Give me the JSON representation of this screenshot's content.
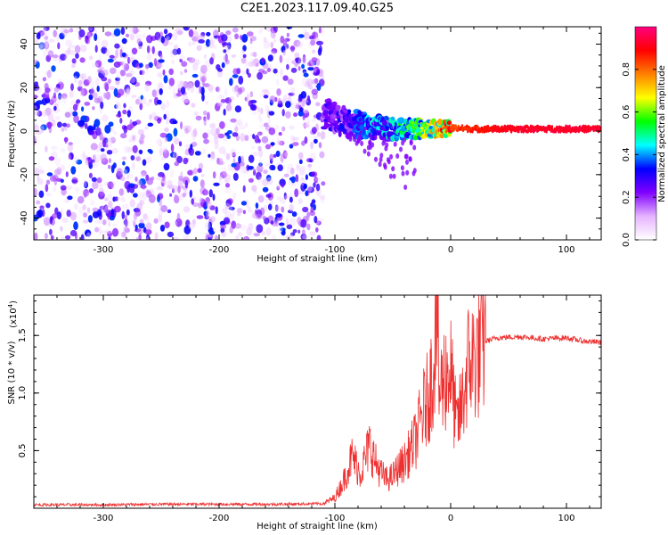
{
  "figure": {
    "title": "C2E1.2023.117.09.40.G25"
  },
  "chart_data": [
    {
      "type": "heatmap",
      "xlabel": "Height of straight line (km)",
      "ylabel": "Frequency (Hz)",
      "xlim": [
        -360,
        130
      ],
      "ylim": [
        -50,
        48
      ],
      "x_ticks": [
        -300,
        -200,
        -100,
        0,
        100
      ],
      "x_tick_labels": [
        "-300",
        "-200",
        "-100",
        "0",
        "100"
      ],
      "y_ticks": [
        -40,
        -20,
        0,
        20,
        40
      ],
      "y_tick_labels": [
        "-40",
        "-20",
        "0",
        "20",
        "40"
      ],
      "noise_region": {
        "x_range": [
          -360,
          -110
        ],
        "y_range": [
          -50,
          48
        ],
        "typical_amplitude": 0.2
      },
      "signal_trace": {
        "x": [
          -110,
          -90,
          -70,
          -50,
          -30,
          -10,
          0,
          20,
          60,
          100,
          130
        ],
        "y": [
          8,
          4,
          2,
          1,
          1,
          1,
          1.5,
          1,
          1,
          1,
          1
        ],
        "amplitude": [
          0.25,
          0.3,
          0.4,
          0.45,
          0.55,
          0.75,
          0.85,
          0.9,
          0.95,
          0.95,
          0.95
        ]
      },
      "colorbar": {
        "label": "Normalized spectral amplitude",
        "ticks": [
          0.0,
          0.2,
          0.4,
          0.6,
          0.8
        ],
        "tick_labels": [
          "0.0",
          "0.2",
          "0.4",
          "0.6",
          "0.8"
        ],
        "range": [
          0,
          1
        ],
        "colors": [
          "#ffffff",
          "#e6b3ff",
          "#8000ff",
          "#0000ff",
          "#00ffff",
          "#00ff00",
          "#ffff00",
          "#ff8000",
          "#ff0000",
          "#ff0080"
        ]
      }
    },
    {
      "type": "line",
      "xlabel": "Height of straight line (km)",
      "ylabel": "SNR (10 * v/v)",
      "scale_label": "(x10",
      "scale_exponent": "4",
      "scale_suffix": ")",
      "xlim": [
        -360,
        130
      ],
      "ylim": [
        0,
        18500
      ],
      "x_ticks": [
        -300,
        -200,
        -100,
        0,
        100
      ],
      "x_tick_labels": [
        "-300",
        "-200",
        "-100",
        "0",
        "100"
      ],
      "y_ticks": [
        5000,
        10000,
        15000
      ],
      "y_tick_labels": [
        "0.5",
        "1.0",
        "1.5"
      ],
      "line_color": "#ee3030",
      "series": [
        {
          "x": [
            -360,
            -300,
            -250,
            -200,
            -150,
            -110,
            -100,
            -92,
            -85,
            -78,
            -70,
            -65,
            -60,
            -55,
            -50,
            -45,
            -40,
            -35,
            -30,
            -25,
            -20,
            -15,
            -12,
            -10,
            -5,
            0,
            5,
            10,
            15,
            20,
            25,
            30,
            40,
            60,
            80,
            100,
            115,
            130
          ],
          "y": [
            300,
            300,
            350,
            350,
            350,
            400,
            900,
            2500,
            4500,
            3000,
            5500,
            4000,
            3000,
            2500,
            2800,
            3500,
            4000,
            5000,
            6000,
            8000,
            9500,
            12000,
            18500,
            10000,
            11500,
            12000,
            7000,
            9000,
            12500,
            13000,
            13500,
            14500,
            14800,
            14900,
            14700,
            14800,
            14500,
            14400
          ]
        }
      ]
    }
  ]
}
